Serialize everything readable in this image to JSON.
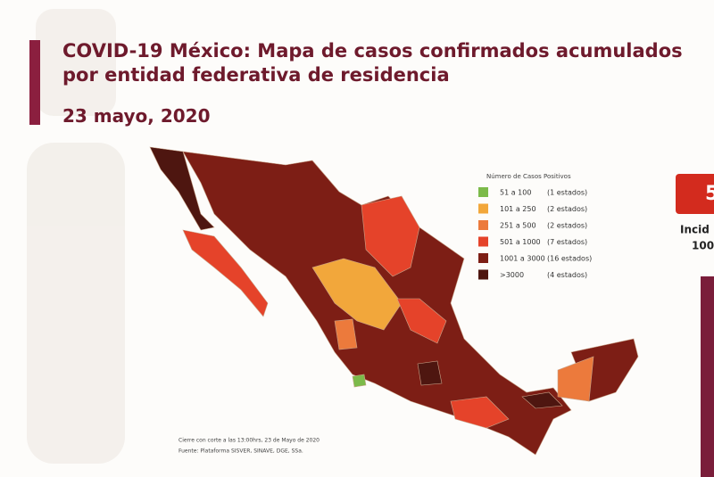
{
  "header": {
    "title_lines": [
      "COVID-19 México: Mapa de casos confirmados acumulados",
      "por entidad federativa de residencia"
    ],
    "date": "23 mayo, 2020"
  },
  "legend": {
    "title": "Número de Casos Positivos",
    "items": [
      {
        "range": "51 a 100",
        "count": "(1 estados)",
        "color": "#7cba4a"
      },
      {
        "range": "101 a 250",
        "count": "(2 estados)",
        "color": "#f2a73b"
      },
      {
        "range": "251 a 500",
        "count": "(2 estados)",
        "color": "#ec7a3c"
      },
      {
        "range": "501 a 1000",
        "count": "(7 estados)",
        "color": "#e5432a"
      },
      {
        "range": "1001 a 3000",
        "count": "(16 estados)",
        "color": "#7d1e15"
      },
      {
        "range": ">3000",
        "count": "(4 estados)",
        "color": "#4e1610"
      }
    ]
  },
  "footnote": [
    "Cierre con corte a las 13:00hrs, 23 de Mayo de 2020",
    "Fuente: Plataforma SISVER, SINAVE, DGE, SSa."
  ],
  "side_panel": {
    "number": "5",
    "lines": [
      "Incid",
      "100"
    ]
  }
}
